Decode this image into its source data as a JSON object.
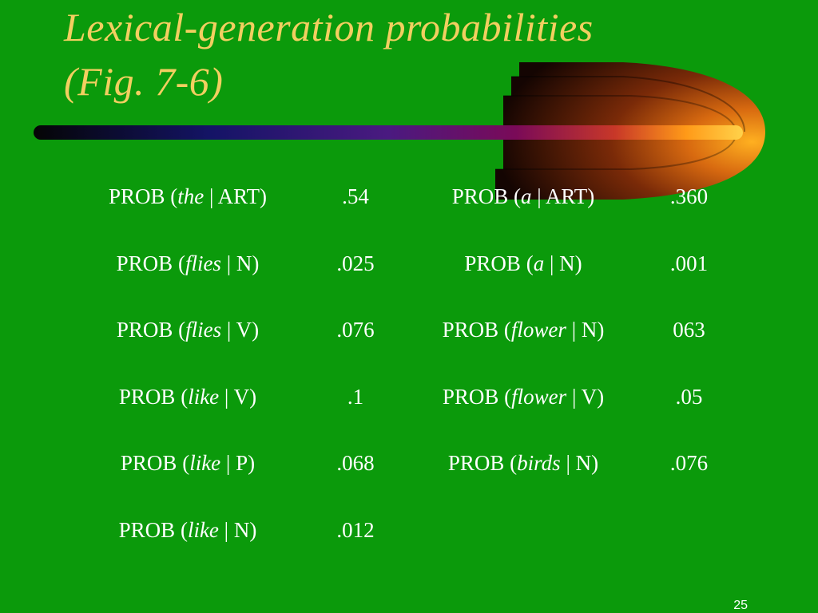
{
  "slide": {
    "title_line1": "Lexical-generation probabilities",
    "title_line2": "(Fig. 7-6)",
    "page_number": "25"
  },
  "colors": {
    "background": "#0b9a0b",
    "title": "#f2cf60",
    "text": "#ffffff"
  },
  "table": {
    "rows": [
      {
        "left": {
          "prefix": "PROB (",
          "word": "the",
          "tag": " | ART)",
          "value": ".54"
        },
        "right": {
          "prefix": "PROB (",
          "word": "a",
          "tag": " | ART)",
          "value": ".360"
        }
      },
      {
        "left": {
          "prefix": "PROB (",
          "word": "flies",
          "tag": " | N)",
          "value": ".025"
        },
        "right": {
          "prefix": "PROB (",
          "word": "a",
          "tag": " | N)",
          "value": ".001"
        }
      },
      {
        "left": {
          "prefix": "PROB (",
          "word": "flies",
          "tag": " | V)",
          "value": ".076"
        },
        "right": {
          "prefix": "PROB (",
          "word": "flower",
          "tag": " | N)",
          "value": "063"
        }
      },
      {
        "left": {
          "prefix": "PROB (",
          "word": "like",
          "tag": " | V)",
          "value": ".1"
        },
        "right": {
          "prefix": "PROB (",
          "word": "flower",
          "tag": " | V)",
          "value": ".05"
        }
      },
      {
        "left": {
          "prefix": "PROB (",
          "word": "like",
          "tag": " | P)",
          "value": ".068"
        },
        "right": {
          "prefix": "PROB (",
          "word": "birds",
          "tag": " | N)",
          "value": ".076"
        }
      },
      {
        "left": {
          "prefix": "PROB (",
          "word": "like",
          "tag": " | N)",
          "value": ".012"
        }
      }
    ]
  }
}
